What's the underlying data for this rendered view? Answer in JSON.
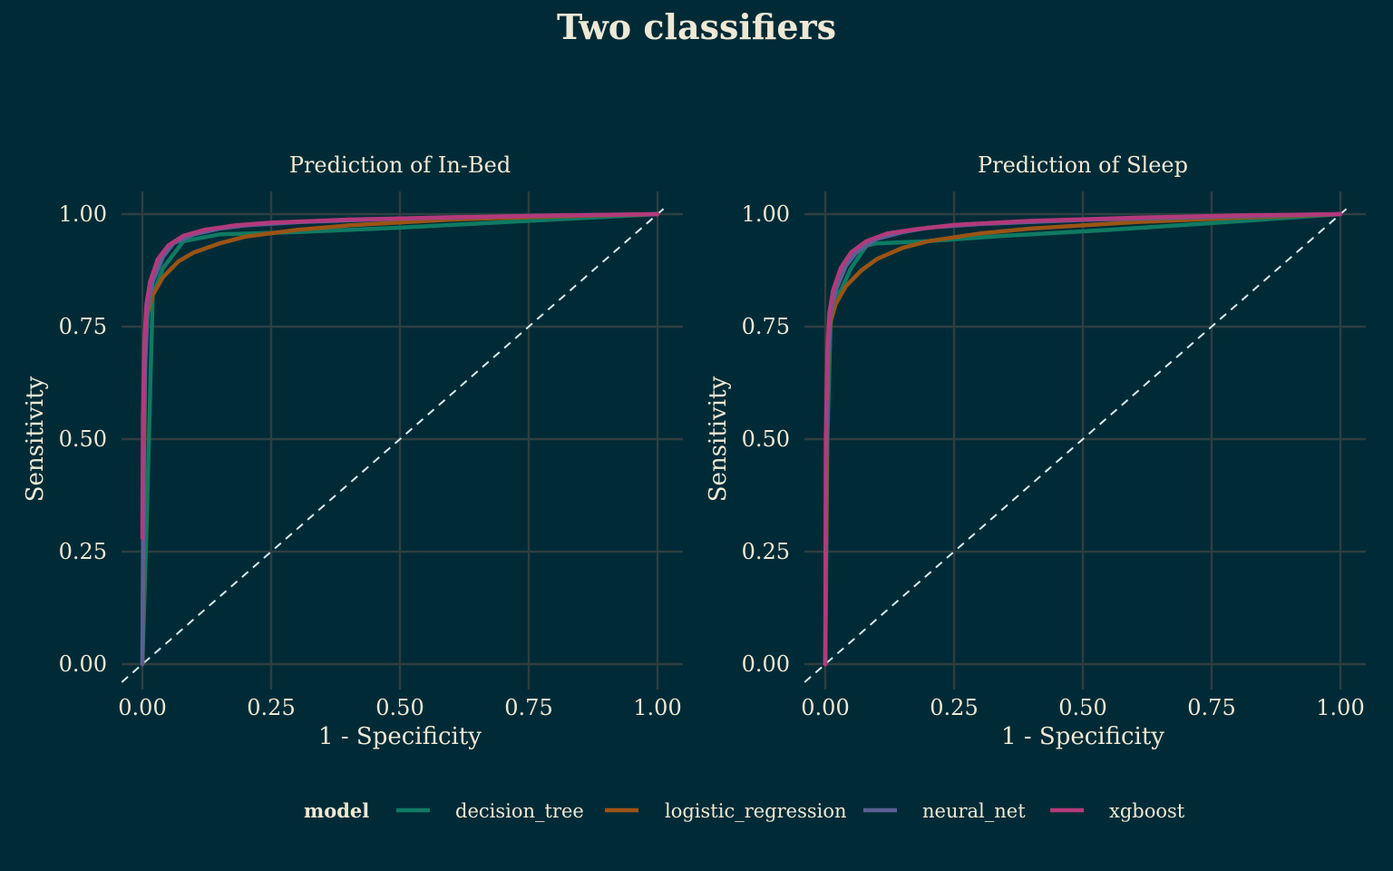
{
  "chart_data": {
    "type": "line",
    "title": "Two classifiers",
    "xlabel": "1 - Specificity",
    "ylabel": "Sensitivity",
    "xlim": [
      0,
      1
    ],
    "ylim": [
      0,
      1
    ],
    "x_ticks": [
      "0.00",
      "0.25",
      "0.50",
      "0.75",
      "1.00"
    ],
    "y_ticks": [
      "0.00",
      "0.25",
      "0.50",
      "0.75",
      "1.00"
    ],
    "grid": true,
    "reference_line": {
      "style": "dashed",
      "from": [
        0,
        0
      ],
      "to": [
        1,
        1
      ],
      "color": "#d8eef3"
    },
    "legend": {
      "title": "model",
      "position": "bottom"
    },
    "series_colors": {
      "decision_tree": "#0f7a63",
      "logistic_regression": "#9b5414",
      "neural_net": "#5a5f94",
      "xgboost": "#b33a7c"
    },
    "panels": [
      {
        "title": "Prediction of In-Bed",
        "series": [
          {
            "name": "decision_tree",
            "x": [
              0,
              0.008,
              0.015,
              0.02,
              0.04,
              0.08,
              0.15,
              0.3,
              0.5,
              0.75,
              1.0
            ],
            "y": [
              0,
              0.3,
              0.6,
              0.82,
              0.88,
              0.94,
              0.955,
              0.96,
              0.97,
              0.985,
              1.0
            ]
          },
          {
            "name": "logistic_regression",
            "x": [
              0,
              0.003,
              0.006,
              0.01,
              0.02,
              0.04,
              0.07,
              0.1,
              0.15,
              0.2,
              0.3,
              0.4,
              0.6,
              0.8,
              1.0
            ],
            "y": [
              0,
              0.45,
              0.7,
              0.78,
              0.82,
              0.86,
              0.895,
              0.915,
              0.935,
              0.95,
              0.965,
              0.975,
              0.988,
              0.995,
              1.0
            ]
          },
          {
            "name": "neural_net",
            "x": [
              0,
              0.002,
              0.005,
              0.01,
              0.02,
              0.04,
              0.06,
              0.1,
              0.15,
              0.2,
              0.3,
              0.5,
              0.75,
              1.0
            ],
            "y": [
              0,
              0.4,
              0.65,
              0.79,
              0.85,
              0.905,
              0.935,
              0.955,
              0.968,
              0.975,
              0.982,
              0.99,
              0.996,
              1.0
            ]
          },
          {
            "name": "xgboost",
            "x": [
              0,
              0.001,
              0.004,
              0.008,
              0.015,
              0.03,
              0.05,
              0.08,
              0.12,
              0.18,
              0.25,
              0.4,
              0.6,
              0.8,
              1.0
            ],
            "y": [
              0.28,
              0.55,
              0.72,
              0.8,
              0.85,
              0.9,
              0.93,
              0.952,
              0.965,
              0.975,
              0.981,
              0.988,
              0.993,
              0.997,
              1.0
            ]
          }
        ]
      },
      {
        "title": "Prediction of Sleep",
        "series": [
          {
            "name": "decision_tree",
            "x": [
              0,
              0.004,
              0.01,
              0.015,
              0.03,
              0.05,
              0.08,
              0.1,
              0.2,
              0.35,
              0.55,
              0.75,
              1.0
            ],
            "y": [
              0,
              0.5,
              0.75,
              0.81,
              0.83,
              0.88,
              0.93,
              0.935,
              0.94,
              0.952,
              0.965,
              0.98,
              1.0
            ]
          },
          {
            "name": "logistic_regression",
            "x": [
              0,
              0.003,
              0.006,
              0.01,
              0.02,
              0.04,
              0.07,
              0.1,
              0.15,
              0.2,
              0.3,
              0.4,
              0.6,
              0.8,
              1.0
            ],
            "y": [
              0,
              0.5,
              0.7,
              0.76,
              0.8,
              0.84,
              0.875,
              0.9,
              0.925,
              0.94,
              0.957,
              0.968,
              0.982,
              0.992,
              1.0
            ]
          },
          {
            "name": "neural_net",
            "x": [
              0,
              0.002,
              0.005,
              0.01,
              0.02,
              0.04,
              0.06,
              0.1,
              0.15,
              0.2,
              0.3,
              0.5,
              0.75,
              1.0
            ],
            "y": [
              0,
              0.45,
              0.68,
              0.78,
              0.83,
              0.885,
              0.915,
              0.945,
              0.96,
              0.97,
              0.978,
              0.987,
              0.994,
              1.0
            ]
          },
          {
            "name": "xgboost",
            "x": [
              0,
              0.001,
              0.004,
              0.008,
              0.015,
              0.03,
              0.05,
              0.08,
              0.12,
              0.18,
              0.25,
              0.4,
              0.6,
              0.8,
              1.0
            ],
            "y": [
              0,
              0.5,
              0.7,
              0.78,
              0.83,
              0.88,
              0.915,
              0.94,
              0.957,
              0.967,
              0.976,
              0.985,
              0.992,
              0.997,
              1.0
            ]
          }
        ]
      }
    ]
  }
}
